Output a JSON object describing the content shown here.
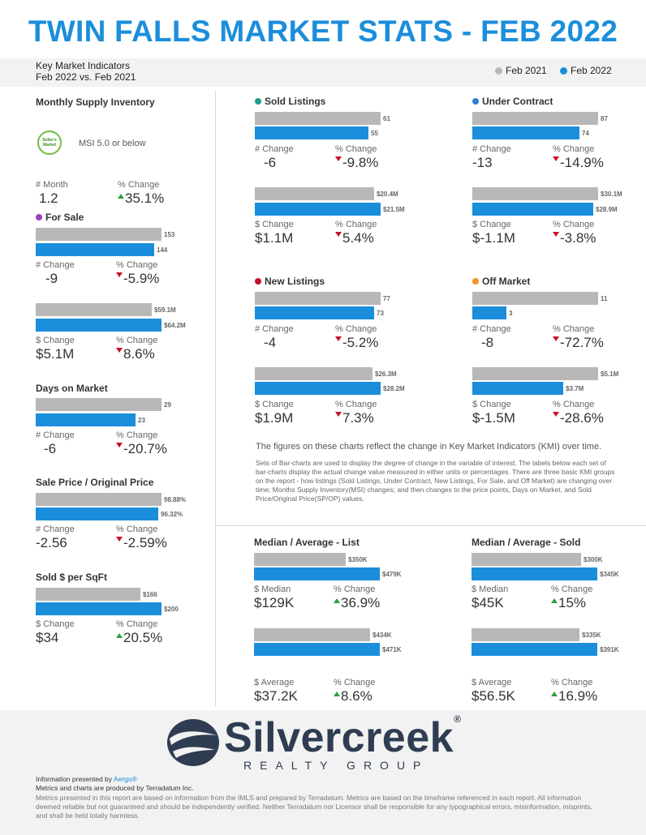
{
  "title": "TWIN FALLS MARKET STATS - FEB 2022",
  "subtitle": {
    "line1": "Key Market Indicators",
    "line2": "Feb 2022 vs. Feb 2021"
  },
  "legend": {
    "feb2021": "Feb 2021",
    "feb2022": "Feb 2022",
    "gray_color": "#b8b8b8",
    "blue_color": "#1b8edb"
  },
  "supply": {
    "title": "Monthly Supply Inventory",
    "badge": "Seller's Market",
    "msi_text": "MSI 5.0 or below",
    "month_label": "# Month",
    "month_value": "1.2",
    "pct_label": "% Change",
    "pct_value": "35.1%",
    "direction": "up"
  },
  "for_sale": {
    "title": "For Sale",
    "dot_color": "#9b3fbf",
    "count_2021": "153",
    "count_2022": "144",
    "count_ratio": [
      1.0,
      0.941
    ],
    "num_label": "# Change",
    "num_change": "-9",
    "num_pct_label": "% Change",
    "num_pct": "-5.9%",
    "vol_2021": "$59.1M",
    "vol_2022": "$64.2M",
    "vol_ratio": [
      0.92,
      1.0
    ],
    "vol_label": "$ Change",
    "vol_change": "$5.1M",
    "vol_pct_label": "% Change",
    "vol_pct": "8.6%"
  },
  "dom": {
    "title": "Days on Market",
    "v2021": "29",
    "v2022": "23",
    "ratio": [
      1.0,
      0.793
    ],
    "num_label": "# Change",
    "num_change": "-6",
    "pct_label": "% Change",
    "pct": "-20.7%"
  },
  "sp_op": {
    "title": "Sale Price / Original Price",
    "v2021": "98.88%",
    "v2022": "96.32%",
    "ratio": [
      1.0,
      0.974
    ],
    "num_label": "# Change",
    "num_change": "-2.56",
    "pct_label": "% Change",
    "pct": "-2.59%"
  },
  "sqft": {
    "title": "Sold $ per SqFt",
    "v2021": "$166",
    "v2022": "$200",
    "ratio": [
      0.83,
      1.0
    ],
    "num_label": "$ Change",
    "num_change": "$34",
    "pct_label": "% Change",
    "pct": "20.5%"
  },
  "sold": {
    "title": "Sold Listings",
    "dot_color": "#1e9e8c",
    "c2021": "61",
    "c2022": "55",
    "num_label": "# Change",
    "num_change": "-6",
    "num_pct_label": "% Change",
    "num_pct": "-9.8%",
    "v2021": "$20.4M",
    "v2022": "$21.5M",
    "vol_label": "$ Change",
    "vol_change": "$1.1M",
    "vol_pct_label": "% Change",
    "vol_pct": "5.4%"
  },
  "under_contract": {
    "title": "Under Contract",
    "dot_color": "#2a7fd4",
    "c2021": "87",
    "c2022": "74",
    "num_label": "# Change",
    "num_change": "-13",
    "num_pct_label": "% Change",
    "num_pct": "-14.9%",
    "v2021": "$30.1M",
    "v2022": "$28.9M",
    "vol_label": "$ Change",
    "vol_change": "$-1.1M",
    "vol_pct_label": "% Change",
    "vol_pct": "-3.8%"
  },
  "new_listings": {
    "title": "New Listings",
    "dot_color": "#c8102e",
    "c2021": "77",
    "c2022": "73",
    "num_label": "# Change",
    "num_change": "-4",
    "num_pct_label": "% Change",
    "num_pct": "-5.2%",
    "v2021": "$26.3M",
    "v2022": "$28.2M",
    "vol_label": "$ Change",
    "vol_change": "$1.9M",
    "vol_pct_label": "% Change",
    "vol_pct": "7.3%"
  },
  "off_market": {
    "title": "Off Market",
    "dot_color": "#f0932b",
    "c2021": "11",
    "c2022": "3",
    "num_label": "# Change",
    "num_change": "-8",
    "num_pct_label": "% Change",
    "num_pct": "-72.7%",
    "v2021": "$5.1M",
    "v2022": "$3.7M",
    "vol_label": "$ Change",
    "vol_change": "$-1.5M",
    "vol_pct_label": "% Change",
    "vol_pct": "-28.6%"
  },
  "notes": {
    "main": "The figures on these charts reflect the change in Key Market Indicators (KMI) over time.",
    "detail": "Sets of Bar-charts are used to display the degree of change in the variable of interest. The labels below each set of bar-charts display the actual change value measured in either units or percentages. There are three basic KMI groups on the report - how listings (Sold Listings, Under Contract, New Listings, For Sale, and Off Market) are changing over time; Months Supply Inventory(MSI) changes; and then changes to the price points, Days on Market, and Sold Price/Original Price(SP/OP) values."
  },
  "list": {
    "title": "Median / Average - List",
    "med2021": "$350K",
    "med2022": "$479K",
    "med_label": "$ Median",
    "med_change": "$129K",
    "med_pct_label": "% Change",
    "med_pct": "36.9%",
    "avg2021": "$434K",
    "avg2022": "$471K",
    "avg_label": "$ Average",
    "avg_change": "$37.2K",
    "avg_pct_label": "% Change",
    "avg_pct": "8.6%"
  },
  "sold_price": {
    "title": "Median / Average - Sold",
    "med2021": "$300K",
    "med2022": "$345K",
    "med_label": "$ Median",
    "med_change": "$45K",
    "med_pct_label": "% Change",
    "med_pct": "15%",
    "avg2021": "$335K",
    "avg2022": "$391K",
    "avg_label": "$ Average",
    "avg_change": "$56.5K",
    "avg_pct_label": "% Change",
    "avg_pct": "16.9%"
  },
  "logo": {
    "name": "Silvercreek",
    "registered": "®",
    "sub": "REALTY GROUP"
  },
  "footer": {
    "presented_prefix": "Information presented by ",
    "presented_link": "Aergo®",
    "produced": "Metrics and charts are produced by Terradatum Inc.",
    "disclaimer": "Metrics presented in this report are based on information from the IMLS and prepared by Terradatum. Metrics are based on the timeframe referenced in each report. All information deemed reliable but not guaranteed and should be independently verified. Neither Terradatum nor Licensor shall be responsible for any typographical errors, misinformation, misprints, and shall be held totally harmless."
  }
}
